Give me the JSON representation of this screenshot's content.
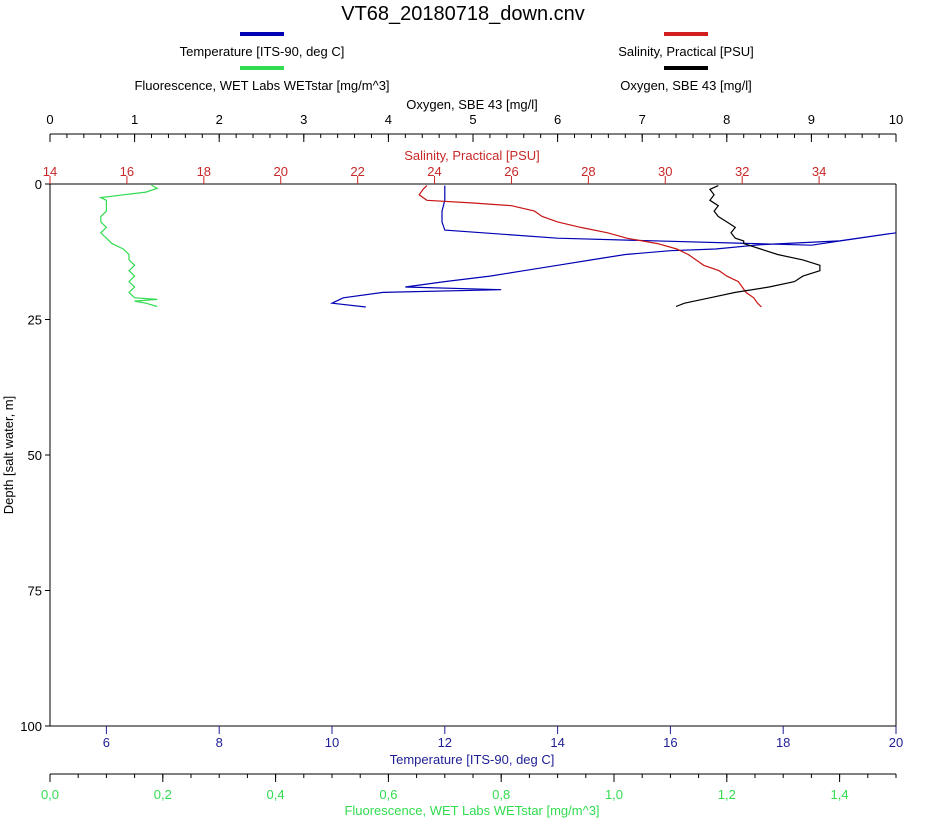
{
  "chart_data": {
    "type": "line",
    "title": "VT68_20180718_down.cnv",
    "y_axis": {
      "label": "Depth [salt water, m]",
      "range": [
        0,
        100
      ],
      "inverted": true,
      "ticks": [
        "0",
        "25",
        "50",
        "75",
        "100"
      ]
    },
    "axes": {
      "oxygen": {
        "label": "Oxygen, SBE 43 [mg/l]",
        "position": "top",
        "range": [
          0,
          10
        ],
        "color": "#000000",
        "ticks": [
          "0",
          "1",
          "2",
          "3",
          "4",
          "5",
          "6",
          "7",
          "8",
          "9",
          "10"
        ]
      },
      "salinity": {
        "label": "Salinity, Practical [PSU]",
        "position": "top",
        "range": [
          14,
          36
        ],
        "color": "#c82828",
        "ticks": [
          "14",
          "16",
          "18",
          "20",
          "22",
          "24",
          "26",
          "28",
          "30",
          "32",
          "34"
        ]
      },
      "temperature": {
        "label": "Temperature [ITS-90, deg C]",
        "position": "bottom",
        "range": [
          5,
          20
        ],
        "color": "#1e1e96",
        "ticks": [
          "6",
          "8",
          "10",
          "12",
          "14",
          "16",
          "18",
          "20"
        ]
      },
      "fluorescence": {
        "label": "Fluorescence, WET Labs WETstar [mg/m^3]",
        "position": "bottom",
        "range": [
          0,
          1.5
        ],
        "color": "#32dc50",
        "ticks": [
          "0,0",
          "0,2",
          "0,4",
          "0,6",
          "0,8",
          "1,0",
          "1,2",
          "1,4"
        ]
      }
    },
    "legend": {
      "placement": "top",
      "items": [
        {
          "name": "Temperature [ITS-90, deg C]",
          "color": "#0000b4"
        },
        {
          "name": "Salinity, Practical [PSU]",
          "color": "#d21e1e"
        },
        {
          "name": "Fluorescence, WET Labs WETstar [mg/m^3]",
          "color": "#32dc50"
        },
        {
          "name": "Oxygen, SBE 43 [mg/l]",
          "color": "#000000"
        }
      ]
    },
    "series": [
      {
        "name": "Temperature [ITS-90, deg C]",
        "axis": "temperature",
        "color": "#0000b4",
        "points": [
          [
            12.0,
            0.3
          ],
          [
            12.0,
            1.5
          ],
          [
            12.0,
            3.0
          ],
          [
            11.95,
            5.0
          ],
          [
            11.95,
            7.0
          ],
          [
            12.0,
            8.5
          ],
          [
            14.0,
            10.0
          ],
          [
            17.5,
            11.0
          ],
          [
            18.5,
            11.3
          ],
          [
            20.0,
            9.0
          ],
          [
            19.0,
            10.5
          ],
          [
            17.6,
            11.2
          ],
          [
            16.8,
            12.0
          ],
          [
            16.0,
            12.3
          ],
          [
            15.2,
            13.0
          ],
          [
            14.6,
            14.0
          ],
          [
            14.0,
            15.0
          ],
          [
            13.4,
            16.0
          ],
          [
            12.8,
            17.0
          ],
          [
            12.0,
            18.0
          ],
          [
            11.3,
            19.0
          ],
          [
            13.0,
            19.5
          ],
          [
            10.9,
            20.0
          ],
          [
            10.2,
            21.0
          ],
          [
            10.0,
            22.0
          ],
          [
            10.6,
            22.7
          ]
        ]
      },
      {
        "name": "Salinity, Practical [PSU]",
        "axis": "salinity",
        "color": "#c81414",
        "points": [
          [
            23.8,
            0.3
          ],
          [
            23.7,
            1.0
          ],
          [
            23.6,
            2.0
          ],
          [
            23.8,
            3.0
          ],
          [
            25.0,
            3.5
          ],
          [
            26.0,
            4.0
          ],
          [
            26.6,
            5.0
          ],
          [
            26.8,
            6.0
          ],
          [
            27.2,
            7.0
          ],
          [
            27.8,
            8.0
          ],
          [
            28.5,
            9.0
          ],
          [
            29.0,
            10.0
          ],
          [
            29.8,
            11.0
          ],
          [
            30.3,
            12.0
          ],
          [
            30.6,
            13.0
          ],
          [
            30.8,
            14.0
          ],
          [
            31.0,
            15.0
          ],
          [
            31.4,
            16.0
          ],
          [
            31.6,
            17.0
          ],
          [
            31.9,
            18.0
          ],
          [
            32.0,
            19.0
          ],
          [
            32.1,
            20.0
          ],
          [
            32.3,
            21.0
          ],
          [
            32.4,
            22.0
          ],
          [
            32.5,
            22.7
          ]
        ]
      },
      {
        "name": "Fluorescence, WET Labs WETstar [mg/m^3]",
        "axis": "fluorescence",
        "color": "#32dc50",
        "points": [
          [
            0.18,
            0.2
          ],
          [
            0.19,
            0.8
          ],
          [
            0.17,
            1.5
          ],
          [
            0.13,
            2.0
          ],
          [
            0.09,
            2.5
          ],
          [
            0.1,
            3.0
          ],
          [
            0.1,
            4.0
          ],
          [
            0.1,
            5.0
          ],
          [
            0.09,
            6.0
          ],
          [
            0.09,
            7.0
          ],
          [
            0.1,
            8.0
          ],
          [
            0.09,
            9.0
          ],
          [
            0.1,
            10.0
          ],
          [
            0.11,
            11.0
          ],
          [
            0.13,
            12.0
          ],
          [
            0.14,
            13.0
          ],
          [
            0.14,
            14.0
          ],
          [
            0.15,
            15.0
          ],
          [
            0.14,
            16.0
          ],
          [
            0.15,
            17.0
          ],
          [
            0.14,
            18.0
          ],
          [
            0.15,
            19.0
          ],
          [
            0.14,
            20.0
          ],
          [
            0.15,
            21.0
          ],
          [
            0.19,
            21.3
          ],
          [
            0.15,
            21.6
          ],
          [
            0.17,
            22.0
          ],
          [
            0.19,
            22.6
          ]
        ]
      },
      {
        "name": "Oxygen, SBE 43 [mg/l]",
        "axis": "oxygen",
        "color": "#000000",
        "points": [
          [
            7.9,
            0.3
          ],
          [
            7.8,
            1.0
          ],
          [
            7.85,
            2.0
          ],
          [
            7.8,
            3.0
          ],
          [
            7.9,
            4.0
          ],
          [
            7.85,
            5.0
          ],
          [
            7.9,
            6.0
          ],
          [
            8.0,
            7.0
          ],
          [
            8.1,
            8.0
          ],
          [
            8.05,
            9.0
          ],
          [
            8.1,
            10.0
          ],
          [
            8.2,
            10.5
          ],
          [
            8.2,
            11.0
          ],
          [
            8.3,
            11.5
          ],
          [
            8.4,
            12.0
          ],
          [
            8.6,
            13.0
          ],
          [
            8.9,
            14.0
          ],
          [
            9.1,
            15.0
          ],
          [
            9.1,
            16.0
          ],
          [
            8.9,
            17.0
          ],
          [
            8.8,
            18.0
          ],
          [
            8.5,
            19.0
          ],
          [
            8.1,
            20.0
          ],
          [
            7.8,
            21.0
          ],
          [
            7.5,
            22.0
          ],
          [
            7.4,
            22.6
          ]
        ]
      }
    ]
  }
}
